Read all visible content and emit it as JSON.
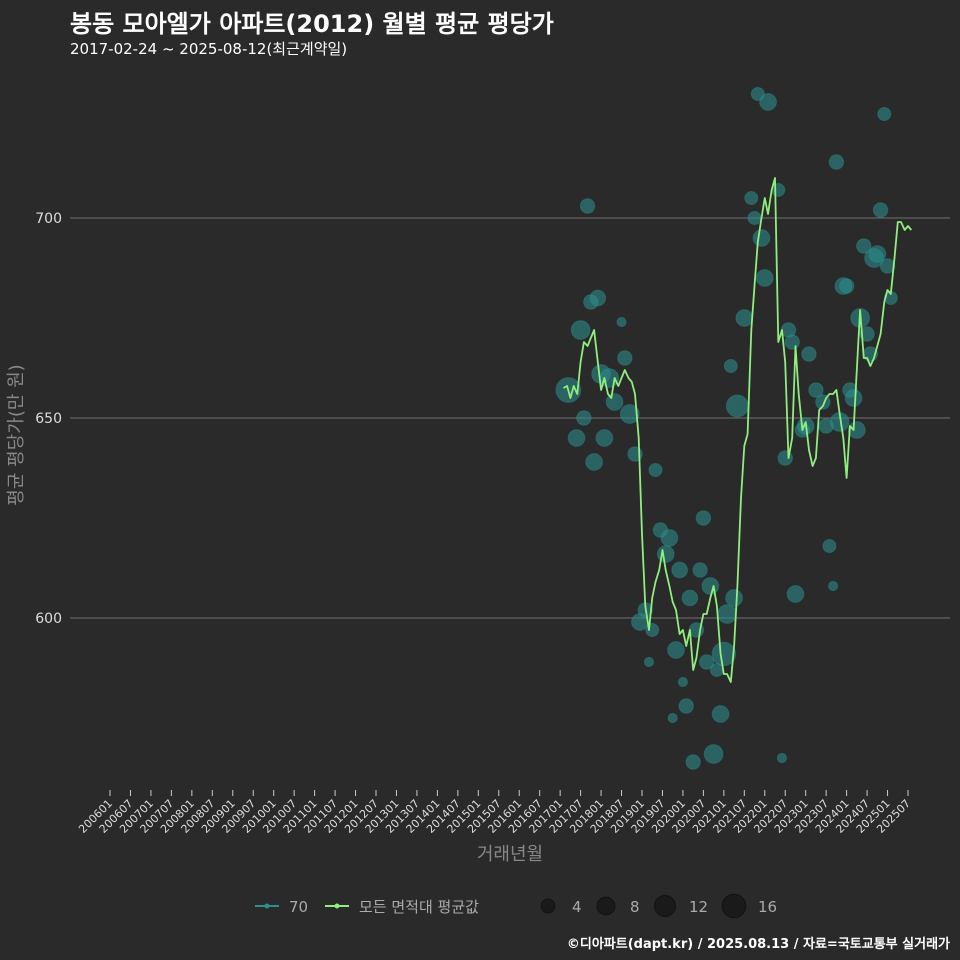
{
  "header": {
    "title": "봉동 모아엘가 아파트(2012) 월별 평균 평당가",
    "subtitle": "2017-02-24 ~ 2025-08-12(최근계약일)"
  },
  "footer": {
    "credit": "©디아파트(dapt.kr) / 2025.08.13 / 자료=국토교통부 실거래가"
  },
  "colors": {
    "background": "#2a2a2b",
    "line": "#90ee7e",
    "point": "#2b908f",
    "grid": "#707073"
  },
  "chart_data": {
    "type": "line",
    "title": "봉동 모아엘가 아파트(2012) 월별 평균 평당가",
    "xlabel": "거래년월",
    "ylabel": "평균 평당가(만 원)",
    "ylim": [
      557,
      737
    ],
    "yticks": [
      600,
      650,
      700
    ],
    "xticks": [
      "200601",
      "200607",
      "200701",
      "200707",
      "200801",
      "200807",
      "200901",
      "200907",
      "201001",
      "201007",
      "201101",
      "201107",
      "201201",
      "201207",
      "201301",
      "201307",
      "201401",
      "201407",
      "201501",
      "201507",
      "201601",
      "201607",
      "201701",
      "201707",
      "201801",
      "201807",
      "201901",
      "201907",
      "202001",
      "202007",
      "202101",
      "202107",
      "202201",
      "202207",
      "202301",
      "202307",
      "202401",
      "202407",
      "202501",
      "202507"
    ],
    "series": [
      {
        "name": "모든 면적대 평균값",
        "type": "line",
        "points": [
          [
            2017.08,
            657.5
          ],
          [
            2017.17,
            658
          ],
          [
            2017.25,
            655
          ],
          [
            2017.33,
            658
          ],
          [
            2017.42,
            656
          ],
          [
            2017.5,
            664
          ],
          [
            2017.58,
            669
          ],
          [
            2017.67,
            668
          ],
          [
            2017.75,
            670
          ],
          [
            2017.83,
            672
          ],
          [
            2017.92,
            664
          ],
          [
            2018.0,
            657
          ],
          [
            2018.08,
            660
          ],
          [
            2018.17,
            656
          ],
          [
            2018.25,
            655
          ],
          [
            2018.33,
            660
          ],
          [
            2018.42,
            658
          ],
          [
            2018.5,
            660
          ],
          [
            2018.58,
            662
          ],
          [
            2018.67,
            660
          ],
          [
            2018.75,
            659
          ],
          [
            2018.83,
            656
          ],
          [
            2018.92,
            645
          ],
          [
            2019.0,
            621
          ],
          [
            2019.08,
            603
          ],
          [
            2019.17,
            597
          ],
          [
            2019.25,
            605
          ],
          [
            2019.33,
            609
          ],
          [
            2019.42,
            612
          ],
          [
            2019.5,
            617
          ],
          [
            2019.58,
            612
          ],
          [
            2019.67,
            608
          ],
          [
            2019.75,
            604
          ],
          [
            2019.83,
            602
          ],
          [
            2019.92,
            596
          ],
          [
            2020.0,
            597
          ],
          [
            2020.08,
            593
          ],
          [
            2020.17,
            597
          ],
          [
            2020.25,
            587
          ],
          [
            2020.33,
            590
          ],
          [
            2020.42,
            597
          ],
          [
            2020.5,
            601
          ],
          [
            2020.58,
            601
          ],
          [
            2020.67,
            605
          ],
          [
            2020.75,
            608
          ],
          [
            2020.83,
            603
          ],
          [
            2020.92,
            591
          ],
          [
            2021.0,
            586
          ],
          [
            2021.08,
            586
          ],
          [
            2021.17,
            584
          ],
          [
            2021.25,
            593
          ],
          [
            2021.33,
            608
          ],
          [
            2021.42,
            630
          ],
          [
            2021.5,
            643
          ],
          [
            2021.58,
            646
          ],
          [
            2021.67,
            672
          ],
          [
            2021.75,
            683
          ],
          [
            2021.83,
            694
          ],
          [
            2021.92,
            700
          ],
          [
            2022.0,
            705
          ],
          [
            2022.08,
            701
          ],
          [
            2022.17,
            707
          ],
          [
            2022.25,
            710
          ],
          [
            2022.33,
            669
          ],
          [
            2022.42,
            672
          ],
          [
            2022.5,
            664
          ],
          [
            2022.58,
            640
          ],
          [
            2022.67,
            645
          ],
          [
            2022.75,
            668
          ],
          [
            2022.83,
            656
          ],
          [
            2022.92,
            647
          ],
          [
            2023.0,
            649
          ],
          [
            2023.08,
            642
          ],
          [
            2023.17,
            638
          ],
          [
            2023.25,
            640
          ],
          [
            2023.33,
            652
          ],
          [
            2023.42,
            653
          ],
          [
            2023.5,
            655
          ],
          [
            2023.58,
            656
          ],
          [
            2023.67,
            656
          ],
          [
            2023.75,
            657
          ],
          [
            2023.83,
            651
          ],
          [
            2023.92,
            645
          ],
          [
            2024.0,
            635
          ],
          [
            2024.08,
            648
          ],
          [
            2024.17,
            647
          ],
          [
            2024.25,
            662
          ],
          [
            2024.33,
            677
          ],
          [
            2024.42,
            665
          ],
          [
            2024.5,
            665
          ],
          [
            2024.58,
            663
          ],
          [
            2024.67,
            665
          ],
          [
            2024.75,
            668
          ],
          [
            2024.83,
            671
          ],
          [
            2024.92,
            679
          ],
          [
            2025.0,
            682
          ],
          [
            2025.08,
            681
          ],
          [
            2025.17,
            690
          ],
          [
            2025.25,
            699
          ],
          [
            2025.33,
            699
          ],
          [
            2025.42,
            697
          ],
          [
            2025.5,
            698
          ],
          [
            2025.58,
            697
          ]
        ]
      },
      {
        "name": "70",
        "type": "scatter",
        "points": [
          [
            2017.2,
            657,
            16
          ],
          [
            2017.4,
            645,
            6
          ],
          [
            2017.5,
            672,
            8
          ],
          [
            2017.58,
            650,
            4
          ],
          [
            2017.67,
            703,
            4
          ],
          [
            2017.75,
            679,
            4
          ],
          [
            2017.83,
            639,
            6
          ],
          [
            2017.92,
            680,
            5
          ],
          [
            2018.0,
            661,
            8
          ],
          [
            2018.08,
            645,
            6
          ],
          [
            2018.2,
            660,
            8
          ],
          [
            2018.33,
            654,
            6
          ],
          [
            2018.5,
            674,
            1
          ],
          [
            2018.58,
            665,
            4
          ],
          [
            2018.7,
            651,
            8
          ],
          [
            2018.83,
            641,
            4
          ],
          [
            2018.95,
            599,
            6
          ],
          [
            2019.08,
            602,
            4
          ],
          [
            2019.17,
            589,
            1
          ],
          [
            2019.25,
            597,
            3
          ],
          [
            2019.33,
            637,
            3
          ],
          [
            2019.45,
            622,
            4
          ],
          [
            2019.58,
            616,
            6
          ],
          [
            2019.67,
            620,
            6
          ],
          [
            2019.75,
            575,
            1
          ],
          [
            2019.83,
            592,
            6
          ],
          [
            2019.92,
            612,
            5
          ],
          [
            2020.0,
            584,
            1
          ],
          [
            2020.08,
            578,
            4
          ],
          [
            2020.17,
            605,
            5
          ],
          [
            2020.25,
            564,
            4
          ],
          [
            2020.33,
            597,
            4
          ],
          [
            2020.42,
            612,
            4
          ],
          [
            2020.5,
            625,
            4
          ],
          [
            2020.58,
            589,
            4
          ],
          [
            2020.67,
            608,
            6
          ],
          [
            2020.75,
            566,
            8
          ],
          [
            2020.83,
            587,
            3
          ],
          [
            2020.92,
            576,
            6
          ],
          [
            2021.0,
            591,
            14
          ],
          [
            2021.08,
            601,
            8
          ],
          [
            2021.17,
            663,
            3
          ],
          [
            2021.25,
            605,
            6
          ],
          [
            2021.33,
            653,
            12
          ],
          [
            2021.5,
            675,
            6
          ],
          [
            2021.67,
            705,
            3
          ],
          [
            2021.75,
            700,
            3
          ],
          [
            2021.83,
            731,
            3
          ],
          [
            2021.92,
            695,
            6
          ],
          [
            2022.0,
            685,
            6
          ],
          [
            2022.08,
            729,
            6
          ],
          [
            2022.33,
            707,
            3
          ],
          [
            2022.42,
            565,
            1
          ],
          [
            2022.5,
            640,
            4
          ],
          [
            2022.58,
            672,
            4
          ],
          [
            2022.67,
            669,
            4
          ],
          [
            2022.75,
            606,
            6
          ],
          [
            2022.92,
            647,
            4
          ],
          [
            2023.0,
            648,
            6
          ],
          [
            2023.08,
            666,
            4
          ],
          [
            2023.25,
            657,
            4
          ],
          [
            2023.42,
            654,
            4
          ],
          [
            2023.5,
            648,
            4
          ],
          [
            2023.58,
            618,
            3
          ],
          [
            2023.67,
            608,
            1
          ],
          [
            2023.75,
            714,
            4
          ],
          [
            2023.83,
            649,
            8
          ],
          [
            2023.92,
            683,
            6
          ],
          [
            2024.0,
            683,
            4
          ],
          [
            2024.08,
            657,
            4
          ],
          [
            2024.17,
            655,
            6
          ],
          [
            2024.25,
            647,
            6
          ],
          [
            2024.33,
            675,
            8
          ],
          [
            2024.42,
            693,
            4
          ],
          [
            2024.5,
            671,
            4
          ],
          [
            2024.58,
            666,
            4
          ],
          [
            2024.67,
            690,
            8
          ],
          [
            2024.75,
            691,
            6
          ],
          [
            2024.83,
            702,
            4
          ],
          [
            2024.92,
            726,
            3
          ],
          [
            2025.0,
            688,
            4
          ],
          [
            2025.08,
            680,
            3
          ]
        ]
      }
    ],
    "legend": {
      "placement": "bottom",
      "items": [
        {
          "label": "70",
          "kind": "point-line",
          "color": "#2b908f"
        },
        {
          "label": "모든 면적대 평균값",
          "kind": "point-line",
          "color": "#90ee7e"
        }
      ],
      "size_title": "",
      "sizes": [
        {
          "label": "4",
          "value": 4
        },
        {
          "label": "8",
          "value": 8
        },
        {
          "label": "12",
          "value": 12
        },
        {
          "label": "16",
          "value": 16
        }
      ]
    }
  }
}
